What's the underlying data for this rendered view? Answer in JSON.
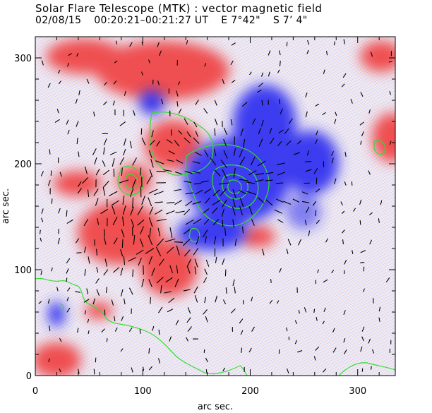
{
  "title": "Solar Flare Telescope (MTK) : vector magnetic field",
  "subtitle": {
    "date": "02/08/15",
    "time_range": "00:20:21–00:21:27 UT",
    "lon": "E 7°42\"",
    "lat": "S 7’ 4\""
  },
  "axes": {
    "xlabel": "arc sec.",
    "ylabel": "arc sec.",
    "xlim": [
      0,
      335
    ],
    "ylim": [
      0,
      320
    ],
    "xticks": [
      0,
      100,
      200,
      300
    ],
    "yticks": [
      0,
      100,
      200,
      300
    ]
  },
  "colors": {
    "positive": "#f03030",
    "negative": "#2828f0",
    "contour": "#33dd33",
    "vector": "#000000"
  }
}
